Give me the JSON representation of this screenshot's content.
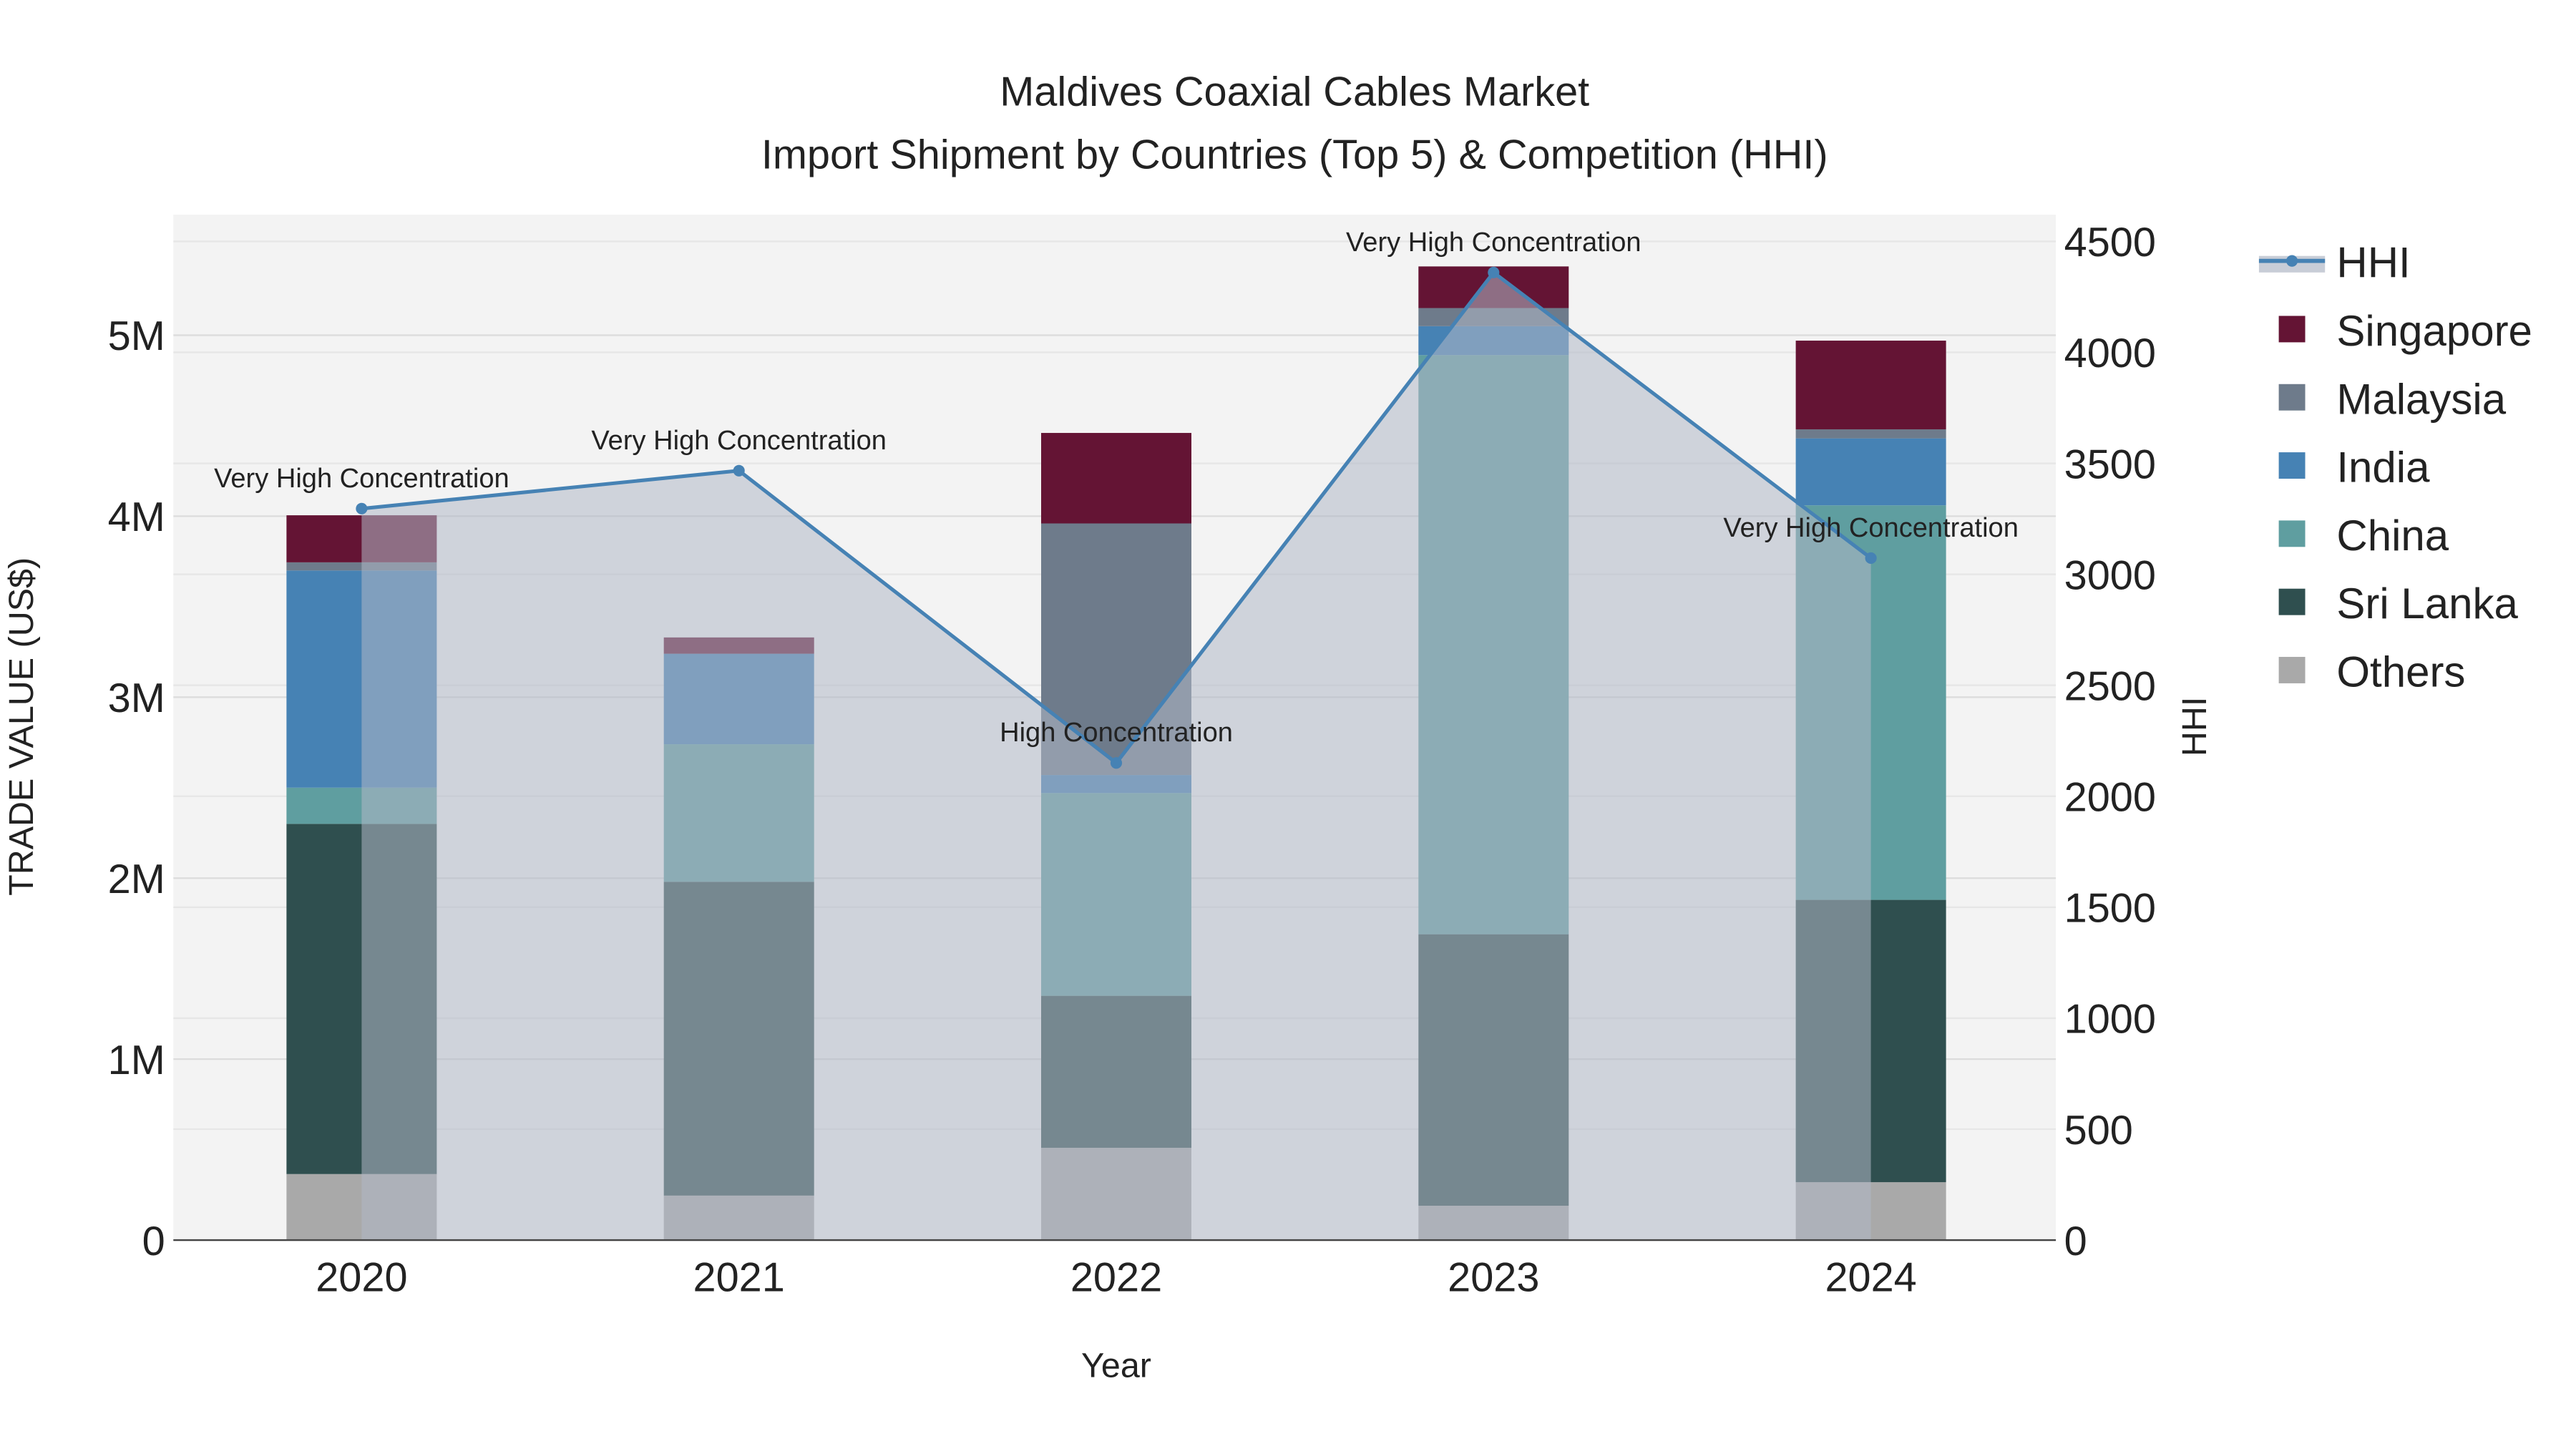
{
  "chart_data": {
    "type": "bar",
    "title": "Maldives Coaxial Cables Market",
    "subtitle": "Import Shipment by Countries (Top 5) & Competition (HHI)",
    "xlabel": "Year",
    "ylabel": "TRADE VALUE (US$)",
    "y2label": "HHI",
    "categories": [
      "2020",
      "2021",
      "2022",
      "2023",
      "2024"
    ],
    "ylim": [
      0,
      5650000
    ],
    "y2lim": [
      0,
      4600
    ],
    "yticks": [
      0,
      1000000,
      2000000,
      3000000,
      4000000,
      5000000
    ],
    "ytick_labels": [
      "0",
      "1M",
      "2M",
      "3M",
      "4M",
      "5M"
    ],
    "y2ticks": [
      0,
      500,
      1000,
      1500,
      2000,
      2500,
      3000,
      3500,
      4000,
      4500
    ],
    "y2tick_labels": [
      "0",
      "500",
      "1000",
      "1500",
      "2000",
      "2500",
      "3000",
      "3500",
      "4000",
      "4500"
    ],
    "grid": true,
    "legend_position": "right",
    "series": [
      {
        "name": "Others",
        "color": "#a9a9a9",
        "values": [
          365000,
          246000,
          510000,
          190000,
          320000
        ]
      },
      {
        "name": "Sri Lanka",
        "color": "#2f4f4f",
        "values": [
          1935000,
          1734000,
          840000,
          1500000,
          1560000
        ]
      },
      {
        "name": "China",
        "color": "#5f9ea0",
        "values": [
          200000,
          760000,
          1120000,
          3200000,
          2180000
        ]
      },
      {
        "name": "India",
        "color": "#4682b4",
        "values": [
          1200000,
          500000,
          100000,
          160000,
          370000
        ]
      },
      {
        "name": "Malaysia",
        "color": "#6e7b8b",
        "values": [
          45000,
          0,
          1390000,
          100000,
          50000
        ]
      },
      {
        "name": "Singapore",
        "color": "#641434",
        "values": [
          260000,
          90000,
          500000,
          230000,
          490000
        ]
      }
    ],
    "hhi": {
      "name": "HHI",
      "color": "#4682b4",
      "values": [
        3296,
        3467,
        2150,
        4360,
        3073
      ],
      "annotations": [
        "Very High Concentration",
        "Very High Concentration",
        "High Concentration",
        "Very High Concentration",
        "Very High Concentration"
      ]
    },
    "legend": [
      "HHI",
      "Singapore",
      "Malaysia",
      "India",
      "China",
      "Sri Lanka",
      "Others"
    ]
  }
}
